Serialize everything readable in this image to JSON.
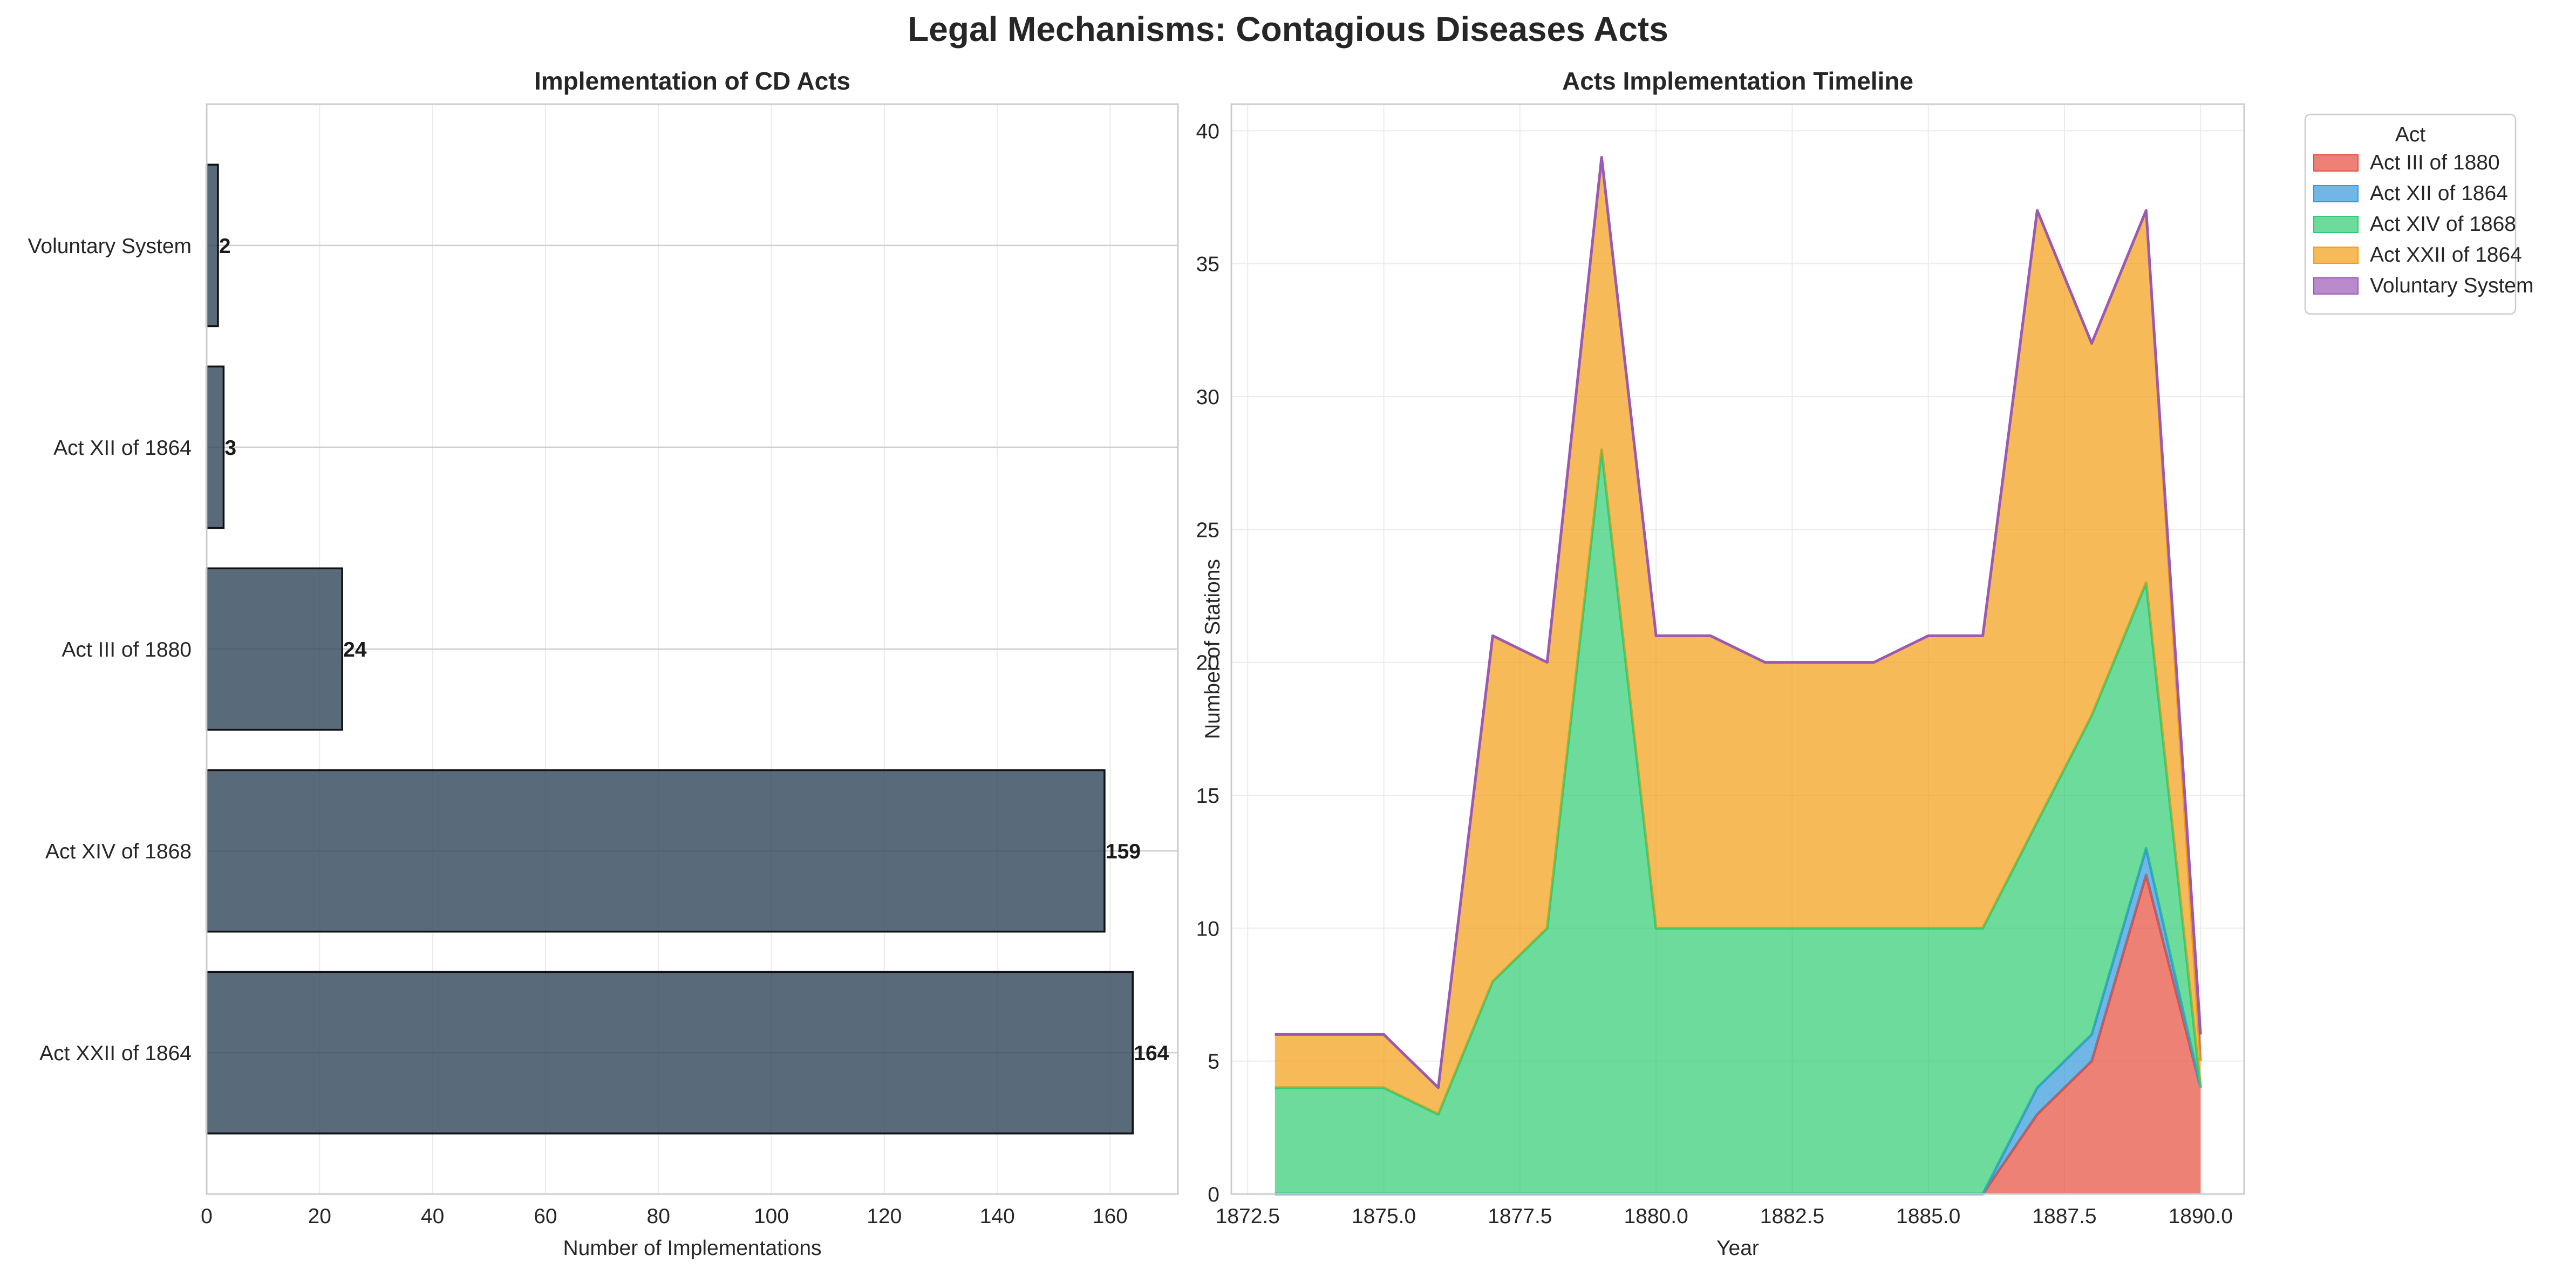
{
  "suptitle": "Legal Mechanisms: Contagious Diseases Acts",
  "chart_data": [
    {
      "type": "bar",
      "orientation": "horizontal",
      "title": "Implementation of CD Acts",
      "xlabel": "Number of Implementations",
      "ylabel": "",
      "categories": [
        "Act XXII of 1864",
        "Act XIV of 1868",
        "Act III of 1880",
        "Act XII of 1864",
        "Voluntary System"
      ],
      "values": [
        164,
        159,
        24,
        3,
        2
      ],
      "xlim": [
        0,
        172
      ],
      "xticks": [
        0,
        20,
        40,
        60,
        80,
        100,
        120,
        140,
        160
      ],
      "grid": true,
      "bar_color": "#34495e"
    },
    {
      "type": "area",
      "stacked": true,
      "title": "Acts Implementation Timeline",
      "xlabel": "Year",
      "ylabel": "Number of Stations",
      "x": [
        1873,
        1874,
        1875,
        1876,
        1877,
        1878,
        1879,
        1880,
        1881,
        1882,
        1883,
        1884,
        1885,
        1886,
        1887,
        1888,
        1889,
        1890
      ],
      "xlim": [
        1872.2,
        1890.8
      ],
      "ylim": [
        0,
        41
      ],
      "xticks": [
        "1872.5",
        "1875.0",
        "1877.5",
        "1880.0",
        "1882.5",
        "1885.0",
        "1887.5",
        "1890.0"
      ],
      "yticks": [
        0,
        5,
        10,
        15,
        20,
        25,
        30,
        35,
        40
      ],
      "grid": true,
      "legend_title": "Act",
      "legend_position": "outside upper right",
      "series": [
        {
          "name": "Act III of 1880",
          "color": "#e74c3c",
          "values": [
            0,
            0,
            0,
            0,
            0,
            0,
            0,
            0,
            0,
            0,
            0,
            0,
            0,
            0,
            3,
            5,
            12,
            4
          ]
        },
        {
          "name": "Act XII of 1864",
          "color": "#3498db",
          "values": [
            0,
            0,
            0,
            0,
            0,
            0,
            0,
            0,
            0,
            0,
            0,
            0,
            0,
            0,
            1,
            1,
            1,
            0
          ]
        },
        {
          "name": "Act XIV of 1868",
          "color": "#2ecc71",
          "values": [
            4,
            4,
            4,
            3,
            8,
            10,
            28,
            10,
            10,
            10,
            10,
            10,
            10,
            10,
            10,
            12,
            10,
            0
          ]
        },
        {
          "name": "Act XXII of 1864",
          "color": "#f39c12",
          "values": [
            2,
            2,
            2,
            1,
            13,
            10,
            11,
            11,
            11,
            10,
            10,
            10,
            11,
            11,
            23,
            14,
            14,
            1
          ]
        },
        {
          "name": "Voluntary System",
          "color": "#9b59b6",
          "values": [
            0,
            0,
            0,
            0,
            0,
            0,
            0,
            0,
            0,
            0,
            0,
            0,
            0,
            0,
            0,
            0,
            0,
            1
          ]
        }
      ]
    }
  ]
}
